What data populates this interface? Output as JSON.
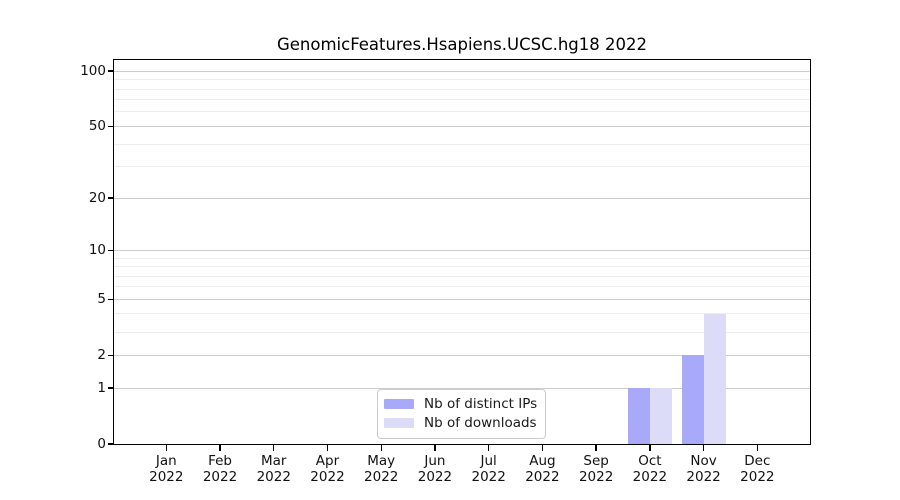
{
  "chart_data": {
    "type": "bar",
    "title": "GenomicFeatures.Hsapiens.UCSC.hg18 2022",
    "categories": [
      "Jan",
      "Feb",
      "Mar",
      "Apr",
      "May",
      "Jun",
      "Jul",
      "Aug",
      "Sep",
      "Oct",
      "Nov",
      "Dec"
    ],
    "year_label": "2022",
    "series": [
      {
        "name": "Nb of distinct IPs",
        "color": "#a9a9f9",
        "values": [
          0,
          0,
          0,
          0,
          0,
          0,
          0,
          0,
          0,
          1,
          2,
          0
        ]
      },
      {
        "name": "Nb of downloads",
        "color": "#dcdcf8",
        "values": [
          0,
          0,
          0,
          0,
          0,
          0,
          0,
          0,
          0,
          1,
          4,
          0
        ]
      }
    ],
    "y_axis": {
      "scale": "log10(1+v)",
      "tick_values": [
        0,
        1,
        2,
        5,
        10,
        20,
        50,
        100
      ],
      "tick_labels": [
        "0",
        "1",
        "2",
        "5",
        "10",
        "20",
        "50",
        "100"
      ],
      "minor_gridline_values": [
        3,
        4,
        6,
        7,
        8,
        9,
        30,
        40,
        60,
        70,
        80,
        90
      ],
      "ylim": [
        0,
        115
      ]
    },
    "legend_position": "lower center",
    "grid": true,
    "colors": {
      "major_grid": "#cdcdcd",
      "minor_grid": "#ededed",
      "spine": "#000000",
      "background": "#ffffff"
    }
  }
}
